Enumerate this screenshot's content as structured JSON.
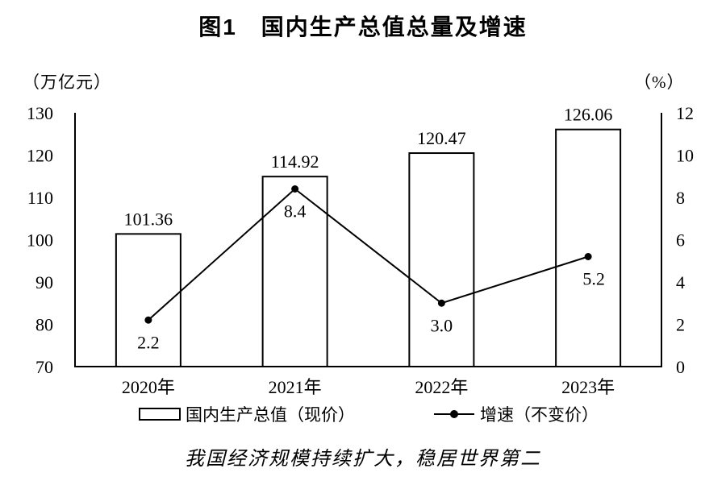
{
  "figure": {
    "title": "图1　国内生产总值总量及增速",
    "caption": "我国经济规模持续扩大，稳居世界第二"
  },
  "legend": {
    "bar_label": "国内生产总值（现价）",
    "line_label": "增速（不变价）"
  },
  "colors": {
    "ink": "#000000",
    "bar_fill": "#ffffff",
    "background": "#ffffff"
  },
  "chart_data": {
    "type": "bar",
    "subtype": "bar+line dual axis",
    "title": "图1　国内生产总值总量及增速",
    "categories": [
      "2020年",
      "2021年",
      "2022年",
      "2023年"
    ],
    "series": [
      {
        "name": "国内生产总值（现价）",
        "type": "bar",
        "axis": "left",
        "values": [
          101.36,
          114.92,
          120.47,
          126.06
        ],
        "labels": [
          "101.36",
          "114.92",
          "120.47",
          "126.06"
        ]
      },
      {
        "name": "增速（不变价）",
        "type": "line",
        "axis": "right",
        "values": [
          2.2,
          8.4,
          3.0,
          5.2
        ],
        "labels": [
          "2.2",
          "8.4",
          "3.0",
          "5.2"
        ]
      }
    ],
    "left_axis": {
      "unit": "（万亿元）",
      "min": 70,
      "max": 130,
      "ticks": [
        130,
        120,
        110,
        100,
        90,
        80,
        70
      ]
    },
    "right_axis": {
      "unit": "（%）",
      "min": 0,
      "max": 12,
      "ticks": [
        12,
        10,
        8,
        6,
        4,
        2,
        0
      ]
    },
    "grid": false,
    "legend_position": "bottom"
  }
}
